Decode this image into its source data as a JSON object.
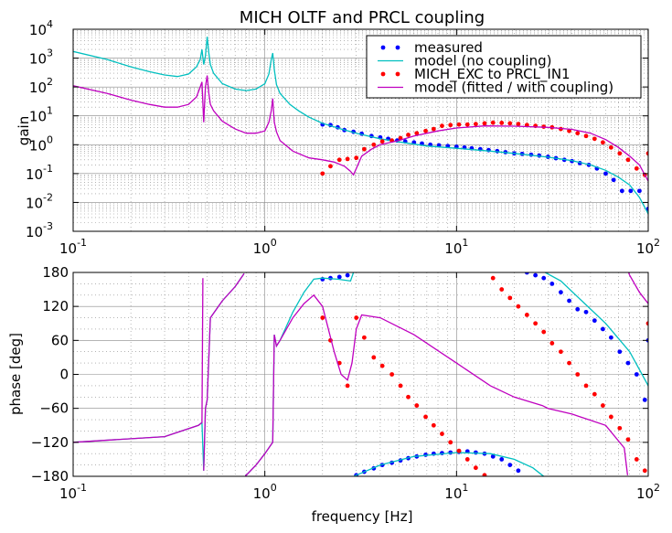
{
  "chart_data": [
    {
      "type": "line",
      "title": "MICH OLTF and PRCL coupling",
      "xlabel": "",
      "ylabel": "gain",
      "xscale": "log",
      "yscale": "log",
      "xlim": [
        0.1,
        100
      ],
      "ylim": [
        0.001,
        10000
      ],
      "x_ticks": [
        {
          "v": 0.1,
          "base": "10",
          "exp": "-1"
        },
        {
          "v": 1,
          "base": "10",
          "exp": "0"
        },
        {
          "v": 10,
          "base": "10",
          "exp": "1"
        },
        {
          "v": 100,
          "base": "10",
          "exp": "2"
        }
      ],
      "y_ticks": [
        {
          "v": 0.001,
          "base": "10",
          "exp": "-3"
        },
        {
          "v": 0.01,
          "base": "10",
          "exp": "-2"
        },
        {
          "v": 0.1,
          "base": "10",
          "exp": "-1"
        },
        {
          "v": 1,
          "base": "10",
          "exp": "0"
        },
        {
          "v": 10,
          "base": "10",
          "exp": "1"
        },
        {
          "v": 100,
          "base": "10",
          "exp": "2"
        },
        {
          "v": 1000,
          "base": "10",
          "exp": "3"
        },
        {
          "v": 10000,
          "base": "10",
          "exp": "4"
        }
      ],
      "grid": true,
      "legend_position": "top-right",
      "legend": [
        {
          "label": "measured",
          "color": "#0000ff",
          "kind": "dots"
        },
        {
          "label": "model (no coupling)",
          "color": "#00bfbf",
          "kind": "line"
        },
        {
          "label": "MICH_EXC to PRCL_IN1",
          "color": "#ff0000",
          "kind": "dots"
        },
        {
          "label": "model (fitted / with coupling)",
          "color": "#bf00bf",
          "kind": "line"
        }
      ],
      "series": [
        {
          "name": "measured",
          "color": "#0000ff",
          "kind": "dots",
          "x": [
            2,
            2.2,
            2.4,
            2.6,
            2.9,
            3.2,
            3.6,
            4,
            4.4,
            4.9,
            5.4,
            6,
            6.6,
            7.3,
            8.1,
            9,
            10,
            11,
            12,
            13.3,
            14.7,
            16.3,
            18,
            20,
            22,
            24.5,
            27,
            30,
            33,
            36.5,
            40,
            44,
            49,
            54,
            60,
            66,
            73,
            81,
            90,
            100
          ],
          "y": [
            5,
            4.8,
            4,
            3.2,
            2.8,
            2.4,
            2,
            1.8,
            1.6,
            1.4,
            1.3,
            1.2,
            1.1,
            1.0,
            0.95,
            0.9,
            0.85,
            0.8,
            0.75,
            0.7,
            0.65,
            0.6,
            0.55,
            0.5,
            0.48,
            0.45,
            0.42,
            0.38,
            0.34,
            0.3,
            0.27,
            0.23,
            0.2,
            0.15,
            0.1,
            0.06,
            0.025,
            0.025,
            0.025,
            0.006
          ]
        },
        {
          "name": "model (no coupling)",
          "color": "#00bfbf",
          "kind": "line",
          "x": [
            0.1,
            0.15,
            0.2,
            0.25,
            0.3,
            0.35,
            0.4,
            0.44,
            0.46,
            0.47,
            0.48,
            0.49,
            0.5,
            0.51,
            0.52,
            0.54,
            0.6,
            0.7,
            0.8,
            0.9,
            1,
            1.05,
            1.08,
            1.1,
            1.12,
            1.15,
            1.2,
            1.35,
            1.5,
            1.7,
            2,
            2.5,
            3,
            4,
            5,
            7,
            10,
            15,
            20,
            30,
            40,
            50,
            60,
            70,
            80,
            90,
            100
          ],
          "y": [
            1700,
            900,
            500,
            340,
            260,
            230,
            280,
            500,
            900,
            2000,
            600,
            1200,
            5500,
            1500,
            600,
            300,
            130,
            85,
            75,
            85,
            130,
            280,
            900,
            1500,
            400,
            120,
            60,
            25,
            15,
            9,
            5.5,
            3.5,
            2.5,
            1.6,
            1.25,
            0.9,
            0.75,
            0.6,
            0.5,
            0.37,
            0.28,
            0.2,
            0.13,
            0.075,
            0.04,
            0.015,
            0.004
          ]
        },
        {
          "name": "MICH_EXC to PRCL_IN1",
          "color": "#ff0000",
          "kind": "dots",
          "x": [
            2,
            2.2,
            2.45,
            2.7,
            3,
            3.3,
            3.7,
            4.1,
            4.6,
            5.1,
            5.6,
            6.2,
            6.9,
            7.6,
            8.4,
            9.3,
            10.3,
            11.4,
            12.6,
            14,
            15.5,
            17.2,
            19,
            21,
            23.3,
            25.8,
            28.5,
            31.5,
            35,
            38.7,
            42.8,
            47.4,
            52.5,
            58,
            64,
            71,
            78.5,
            87,
            96,
            100
          ],
          "y": [
            0.1,
            0.18,
            0.3,
            0.32,
            0.35,
            0.7,
            1,
            1.3,
            1.4,
            1.7,
            2.2,
            2.5,
            3,
            3.5,
            4.5,
            4.8,
            5,
            5,
            5.2,
            5.5,
            5.8,
            5.7,
            5.5,
            5.2,
            4.8,
            4.5,
            4.2,
            4,
            3.5,
            3,
            2.5,
            2,
            1.6,
            1.2,
            0.8,
            0.5,
            0.3,
            0.15,
            0.09,
            0.5
          ]
        },
        {
          "name": "model (fitted / with coupling)",
          "color": "#bf00bf",
          "kind": "line",
          "x": [
            0.1,
            0.15,
            0.2,
            0.25,
            0.3,
            0.35,
            0.4,
            0.44,
            0.46,
            0.47,
            0.48,
            0.49,
            0.5,
            0.51,
            0.52,
            0.54,
            0.6,
            0.7,
            0.8,
            0.9,
            1,
            1.05,
            1.08,
            1.1,
            1.12,
            1.15,
            1.2,
            1.4,
            1.7,
            2,
            2.3,
            2.6,
            2.8,
            2.9,
            3,
            3.2,
            3.6,
            4,
            5,
            6,
            8,
            10,
            14,
            20,
            30,
            40,
            50,
            60,
            70,
            80,
            90,
            100
          ],
          "y": [
            110,
            60,
            35,
            25,
            20,
            20,
            25,
            45,
            100,
            150,
            6,
            100,
            250,
            60,
            25,
            15,
            6.5,
            3.5,
            2.5,
            2.5,
            3,
            6,
            15,
            40,
            6,
            2.8,
            1.4,
            0.6,
            0.35,
            0.3,
            0.25,
            0.18,
            0.12,
            0.09,
            0.15,
            0.4,
            0.7,
            1,
            1.4,
            2,
            3,
            3.8,
            4.5,
            4.4,
            4,
            3.4,
            2.5,
            1.5,
            0.8,
            0.4,
            0.2,
            0.055
          ]
        }
      ]
    },
    {
      "type": "line",
      "title": "",
      "xlabel": "frequency [Hz]",
      "ylabel": "phase [deg]",
      "xscale": "log",
      "yscale": "linear",
      "xlim": [
        0.1,
        100
      ],
      "ylim": [
        -180,
        180
      ],
      "x_ticks": [
        {
          "v": 0.1,
          "base": "10",
          "exp": "-1"
        },
        {
          "v": 1,
          "base": "10",
          "exp": "0"
        },
        {
          "v": 10,
          "base": "10",
          "exp": "1"
        },
        {
          "v": 100,
          "base": "10",
          "exp": "2"
        }
      ],
      "y_ticks": [
        {
          "v": -180,
          "label": "−180"
        },
        {
          "v": -120,
          "label": "−120"
        },
        {
          "v": -60,
          "label": "−60"
        },
        {
          "v": 0,
          "label": "0"
        },
        {
          "v": 60,
          "label": "60"
        },
        {
          "v": 120,
          "label": "120"
        },
        {
          "v": 180,
          "label": "180"
        }
      ],
      "grid": true,
      "series": [
        {
          "name": "measured",
          "color": "#0000ff",
          "kind": "dots",
          "x": [
            2,
            2.2,
            2.45,
            2.7,
            3,
            3.3,
            3.7,
            4.1,
            4.6,
            5.1,
            5.6,
            6.2,
            6.9,
            7.6,
            8.4,
            9.3,
            10.3,
            11.4,
            12.6,
            14,
            15.5,
            17.2,
            19,
            21,
            23.3,
            25.8,
            28.5,
            31.5,
            35,
            38.7,
            42.8,
            47.4,
            52.5,
            58,
            64,
            71,
            78.5,
            87,
            96,
            100
          ],
          "y": [
            168,
            170,
            172,
            175,
            -178,
            -172,
            -166,
            -160,
            -156,
            -152,
            -148,
            -145,
            -142,
            -140,
            -139,
            -138,
            -137,
            -136,
            -138,
            -140,
            -145,
            -150,
            -160,
            -170,
            180,
            175,
            170,
            160,
            145,
            130,
            115,
            110,
            95,
            80,
            65,
            40,
            20,
            0,
            -45,
            60
          ]
        },
        {
          "name": "model (no coupling)",
          "color": "#00bfbf",
          "kind": "line",
          "x": [
            0.1,
            0.3,
            0.45,
            0.47,
            0.48,
            0.49,
            0.5,
            0.52,
            0.6,
            0.7,
            0.78,
            0.79,
            0.8,
            0.9,
            1,
            1.1,
            1.12,
            1.15,
            1.2,
            1.4,
            1.6,
            1.8,
            2,
            2.4,
            2.8,
            2.9,
            2.92,
            3,
            4,
            6,
            10,
            15,
            20,
            25,
            28,
            28.5,
            29,
            35,
            45,
            60,
            80,
            100
          ],
          "y": [
            -120,
            -110,
            -90,
            -85,
            -170,
            -60,
            -45,
            100,
            130,
            155,
            178,
            -178,
            -178,
            -160,
            -140,
            -120,
            70,
            50,
            60,
            110,
            145,
            168,
            170,
            168,
            165,
            180,
            -180,
            -178,
            -160,
            -145,
            -138,
            -140,
            -150,
            -165,
            -178,
            -180,
            180,
            165,
            130,
            90,
            40,
            -20
          ]
        },
        {
          "name": "MICH_EXC to PRCL_IN1",
          "color": "#ff0000",
          "kind": "dots",
          "x": [
            2,
            2.2,
            2.45,
            2.7,
            3,
            3.3,
            3.7,
            4.1,
            4.6,
            5.1,
            5.6,
            6.2,
            6.9,
            7.6,
            8.4,
            9.3,
            10.3,
            11.4,
            12.6,
            14,
            15.5,
            17.2,
            19,
            21,
            23.3,
            25.8,
            28.5,
            31.5,
            35,
            38.7,
            42.8,
            47.4,
            52.5,
            58,
            64,
            71,
            78.5,
            87,
            96,
            100
          ],
          "y": [
            100,
            60,
            20,
            -20,
            100,
            65,
            30,
            15,
            0,
            -20,
            -40,
            -55,
            -75,
            -90,
            -105,
            -120,
            -135,
            -150,
            -165,
            -178,
            170,
            150,
            135,
            120,
            105,
            90,
            75,
            55,
            40,
            20,
            0,
            -20,
            -35,
            -55,
            -75,
            -95,
            -115,
            -150,
            -170,
            90
          ]
        },
        {
          "name": "model (fitted / with coupling)",
          "color": "#bf00bf",
          "kind": "line",
          "x": [
            0.1,
            0.3,
            0.45,
            0.47,
            0.475,
            0.48,
            0.49,
            0.5,
            0.52,
            0.6,
            0.7,
            0.78,
            0.79,
            0.8,
            0.9,
            1,
            1.1,
            1.12,
            1.15,
            1.2,
            1.4,
            1.6,
            1.8,
            2,
            2.3,
            2.5,
            2.7,
            2.85,
            3,
            3.2,
            4,
            6,
            10,
            15,
            20,
            25,
            28,
            30,
            40,
            60,
            75,
            78,
            79,
            80,
            90,
            100
          ],
          "y": [
            -120,
            -110,
            -90,
            -85,
            170,
            -170,
            -60,
            -45,
            100,
            130,
            155,
            178,
            -178,
            -178,
            -160,
            -140,
            -120,
            70,
            50,
            60,
            100,
            125,
            140,
            120,
            40,
            0,
            -10,
            20,
            80,
            105,
            100,
            70,
            20,
            -20,
            -40,
            -50,
            -55,
            -60,
            -70,
            -90,
            -130,
            -178,
            180,
            175,
            145,
            125
          ]
        }
      ]
    }
  ]
}
